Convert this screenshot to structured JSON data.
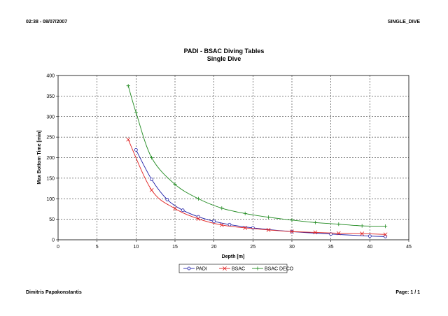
{
  "header": {
    "left": "02:38 - 08/07/2007",
    "right": "SINGLE_DIVE"
  },
  "footer": {
    "left": "Dimitris Papakonstantis",
    "right": "Page: 1 / 1"
  },
  "chart_data": {
    "type": "line",
    "title": "PADI - BSAC Diving Tables",
    "subtitle": "Single Dive",
    "xlabel": "Depth [m]",
    "ylabel": "Max Bottom Time [min]",
    "xlim": [
      0,
      45
    ],
    "ylim": [
      0,
      400
    ],
    "xticks": [
      0,
      5,
      10,
      15,
      20,
      25,
      30,
      35,
      40,
      45
    ],
    "yticks": [
      0,
      50,
      100,
      150,
      200,
      250,
      300,
      350,
      400
    ],
    "grid": true,
    "legend_position": "bottom",
    "series": [
      {
        "name": "PADI",
        "color": "#1f1fa8",
        "marker": "circle",
        "x": [
          10,
          12,
          14,
          16,
          18,
          20,
          22,
          25,
          30,
          35,
          40,
          42
        ],
        "y": [
          219,
          147,
          98,
          72,
          56,
          45,
          37,
          29,
          20,
          14,
          9,
          8
        ]
      },
      {
        "name": "BSAC",
        "color": "#e02020",
        "marker": "x",
        "x": [
          9,
          12,
          15,
          18,
          21,
          24,
          27,
          30,
          33,
          36,
          39,
          42
        ],
        "y": [
          244,
          121,
          76,
          51,
          36,
          29,
          24,
          20,
          18,
          16,
          15,
          13
        ]
      },
      {
        "name": "BSAC DECO",
        "color": "#208a20",
        "marker": "plus",
        "x": [
          9,
          10,
          12,
          15,
          18,
          21,
          24,
          27,
          30,
          33,
          36,
          39,
          42
        ],
        "y": [
          375,
          310,
          200,
          135,
          100,
          77,
          64,
          55,
          48,
          42,
          38,
          34,
          33
        ]
      }
    ]
  }
}
